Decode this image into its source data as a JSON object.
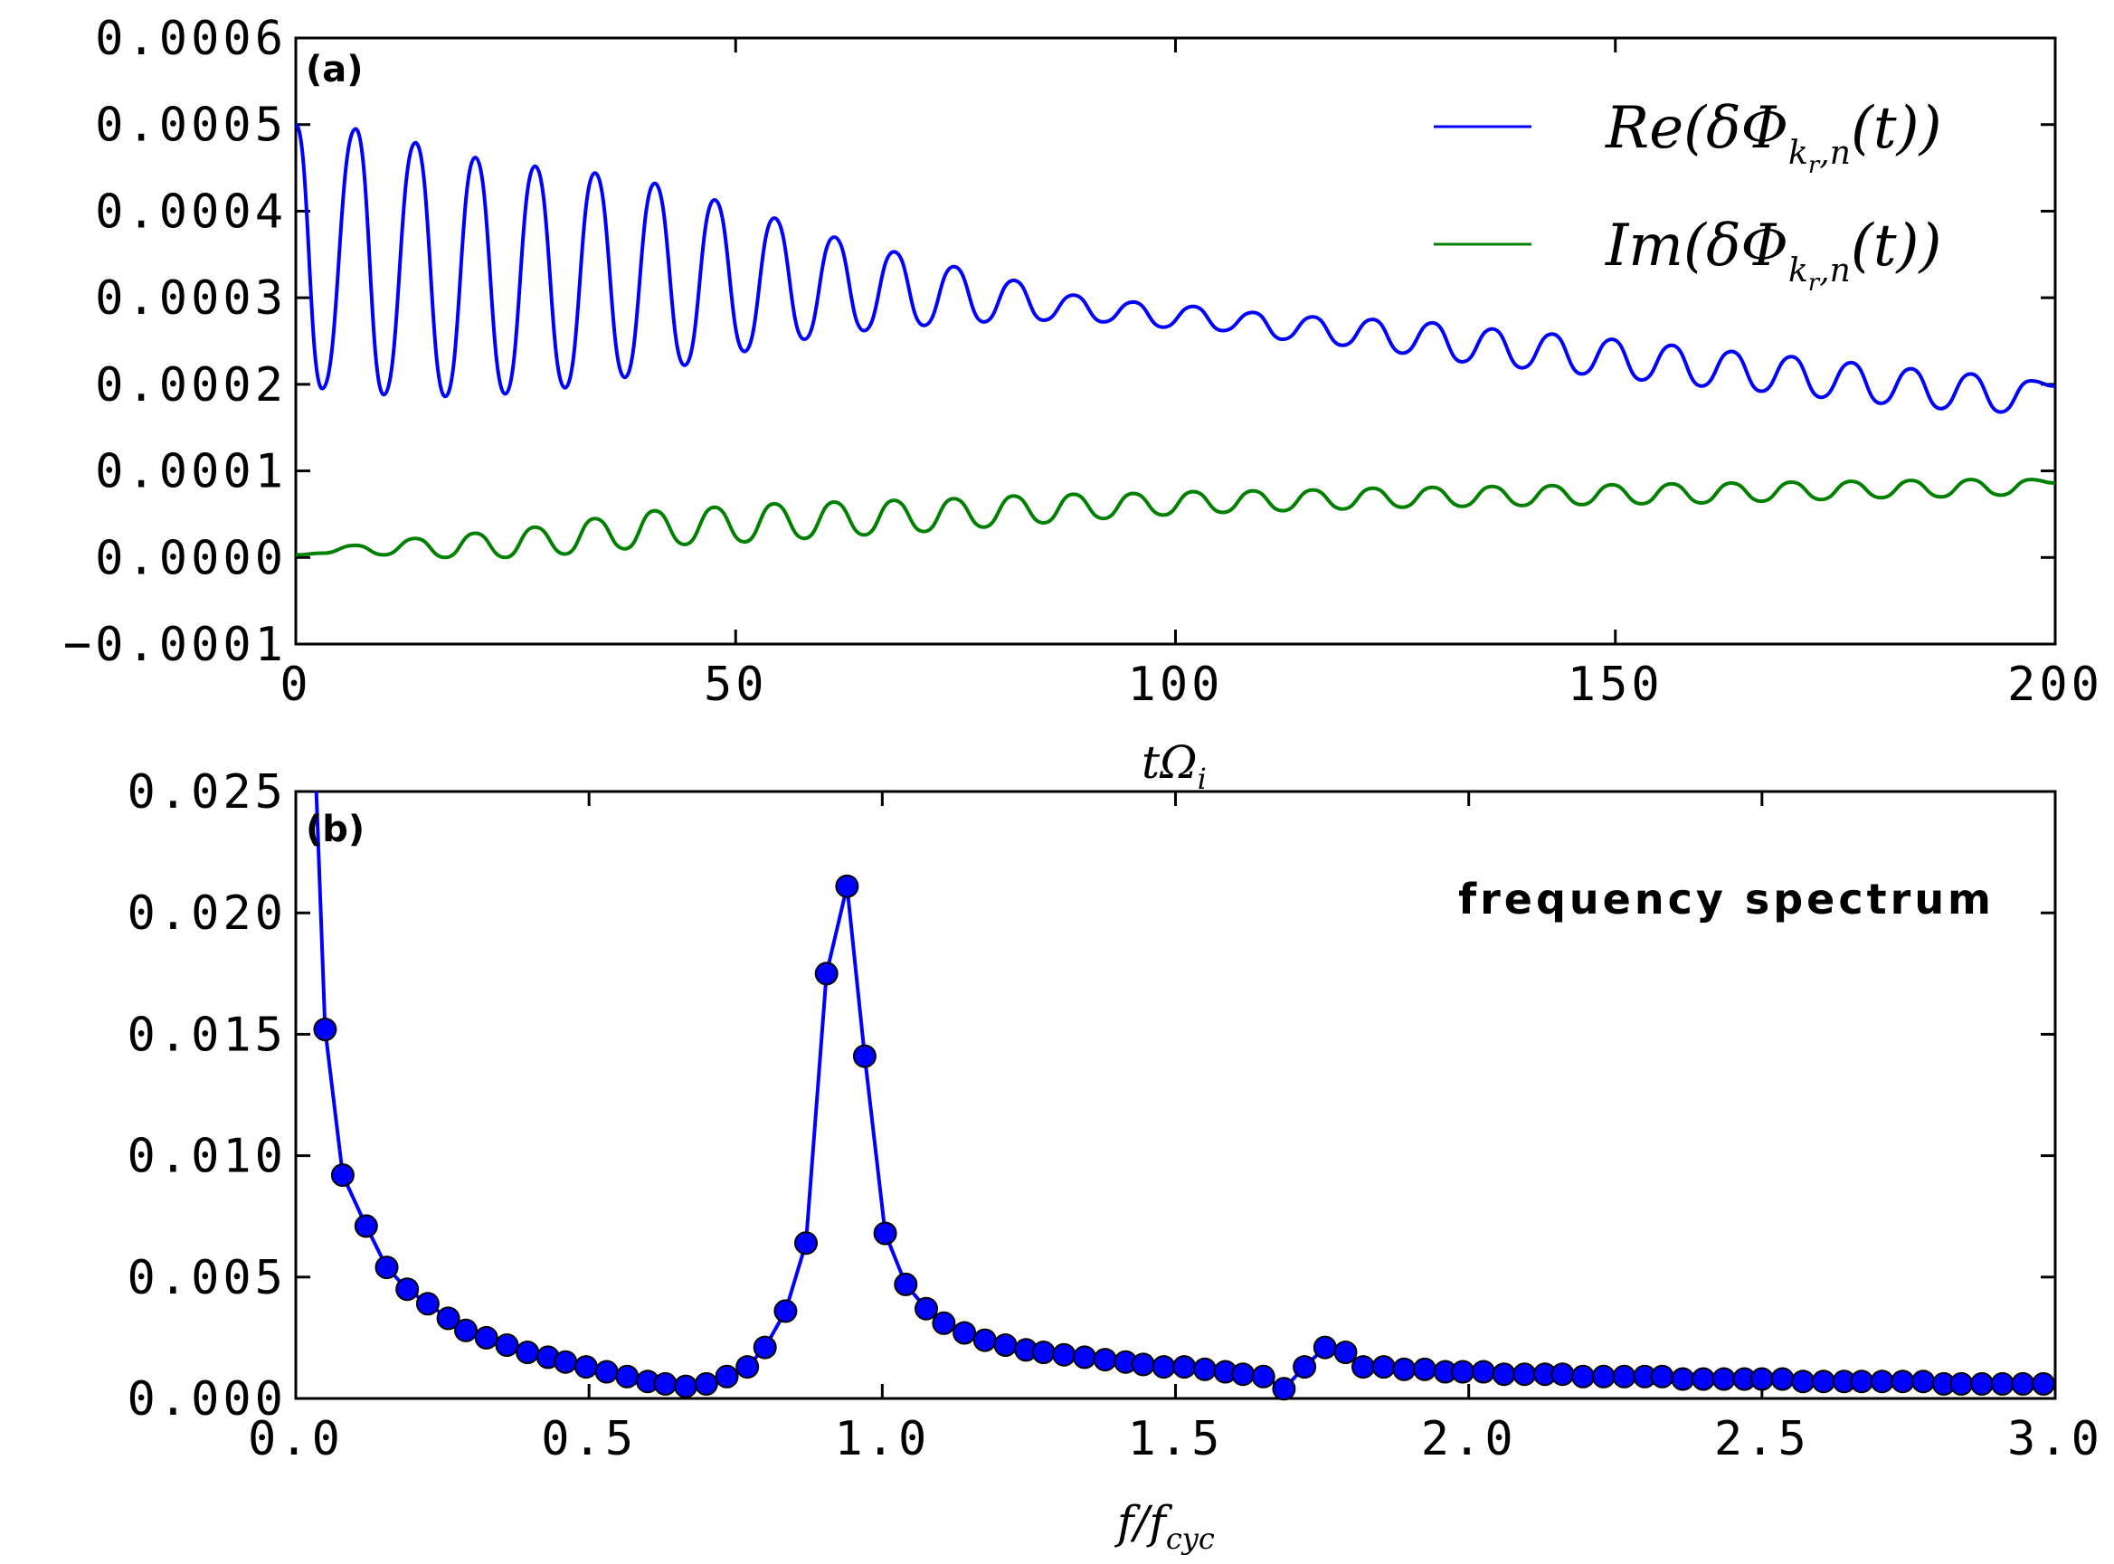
{
  "chart_data": [
    {
      "type": "line",
      "panel_label": "(a)",
      "xlabel": "tΩ",
      "xlabel_sub": "i",
      "xlim": [
        0,
        200
      ],
      "ylim": [
        -0.0001,
        0.0006
      ],
      "x_ticks": [
        0,
        50,
        100,
        150,
        200
      ],
      "x_tick_labels": [
        "0",
        "50",
        "100",
        "150",
        "200"
      ],
      "y_ticks": [
        -0.0001,
        0.0,
        0.0001,
        0.0002,
        0.0003,
        0.0004,
        0.0005,
        0.0006
      ],
      "y_tick_labels": [
        "−0.0001",
        "0.0000",
        "0.0001",
        "0.0002",
        "0.0003",
        "0.0004",
        "0.0005",
        "0.0006"
      ],
      "legend_position": "top-right",
      "series": [
        {
          "name": "Re(δΦ_{k_r,n}(t))",
          "legend_main": "Re(δΦ",
          "legend_sub": "k",
          "legend_subsub": "r",
          "legend_sub2": ",n",
          "legend_tail": "(t))",
          "color": "#0000ff",
          "x": [
            0,
            3,
            6.8,
            10,
            13.6,
            17,
            20.4,
            23.8,
            27.2,
            30.6,
            34,
            37.4,
            40.8,
            44.2,
            47.6,
            51,
            54.4,
            57.8,
            61.2,
            64.6,
            68,
            71.4,
            74.8,
            78.2,
            81.6,
            85,
            88.4,
            91.8,
            95.2,
            98.6,
            102,
            105.4,
            108.8,
            112.2,
            115.6,
            119,
            122.4,
            125.8,
            129.2,
            132.6,
            136,
            139.4,
            142.8,
            146.2,
            149.6,
            153,
            156.4,
            159.8,
            163.2,
            166.6,
            170,
            173.4,
            176.8,
            180.2,
            183.6,
            187,
            190.4,
            193.8,
            197.2,
            200
          ],
          "values": [
            0.0005,
            0.000195,
            0.000495,
            0.000188,
            0.000479,
            0.000186,
            0.000462,
            0.000189,
            0.000452,
            0.000196,
            0.000444,
            0.000208,
            0.000432,
            0.000222,
            0.000413,
            0.000238,
            0.000392,
            0.000252,
            0.00037,
            0.000262,
            0.000353,
            0.000268,
            0.000336,
            0.000272,
            0.00032,
            0.000274,
            0.000303,
            0.000272,
            0.000295,
            0.000266,
            0.00029,
            0.000262,
            0.000283,
            0.000252,
            0.000278,
            0.000245,
            0.000275,
            0.000236,
            0.000271,
            0.000226,
            0.000264,
            0.000219,
            0.000258,
            0.000212,
            0.000252,
            0.000205,
            0.000245,
            0.000198,
            0.000238,
            0.000192,
            0.000232,
            0.000185,
            0.000225,
            0.000178,
            0.000218,
            0.000172,
            0.000212,
            0.000168,
            0.000204,
            0.000198
          ]
        },
        {
          "name": "Im(δΦ_{k_r,n}(t))",
          "legend_main": "Im(δΦ",
          "legend_sub": "k",
          "legend_subsub": "r",
          "legend_sub2": ",n",
          "legend_tail": "(t))",
          "color": "#008000",
          "x": [
            0,
            3,
            6.8,
            10,
            13.6,
            17,
            20.4,
            23.8,
            27.2,
            30.6,
            34,
            37.4,
            40.8,
            44.2,
            47.6,
            51,
            54.4,
            57.8,
            61.2,
            64.6,
            68,
            71.4,
            74.8,
            78.2,
            81.6,
            85,
            88.4,
            91.8,
            95.2,
            98.6,
            102,
            105.4,
            108.8,
            112.2,
            115.6,
            119,
            122.4,
            125.8,
            129.2,
            132.6,
            136,
            139.4,
            142.8,
            146.2,
            149.6,
            153,
            156.4,
            159.8,
            163.2,
            166.6,
            170,
            173.4,
            176.8,
            180.2,
            183.6,
            187,
            190.4,
            193.8,
            197.2,
            200
          ],
          "values": [
            3e-06,
            5e-06,
            1.4e-05,
            3e-06,
            2.2e-05,
            0.0,
            2.8e-05,
            0.0,
            3.5e-05,
            4e-06,
            4.5e-05,
            1e-05,
            5.4e-05,
            1.5e-05,
            5.8e-05,
            1.8e-05,
            6.2e-05,
            2.2e-05,
            6.4e-05,
            2.6e-05,
            6.6e-05,
            3e-05,
            6.8e-05,
            3.5e-05,
            7.1e-05,
            4e-05,
            7.3e-05,
            4.5e-05,
            7.4e-05,
            4.9e-05,
            7.6e-05,
            5.2e-05,
            7.7e-05,
            5.4e-05,
            7.8e-05,
            5.6e-05,
            8e-05,
            5.8e-05,
            8.1e-05,
            5.9e-05,
            8.2e-05,
            6e-05,
            8.3e-05,
            6.1e-05,
            8.4e-05,
            6.2e-05,
            8.5e-05,
            6.3e-05,
            8.6e-05,
            6.5e-05,
            8.7e-05,
            6.7e-05,
            8.8e-05,
            6.9e-05,
            8.9e-05,
            7e-05,
            9e-05,
            7.2e-05,
            9e-05,
            8.6e-05
          ]
        }
      ]
    },
    {
      "type": "line",
      "panel_label": "(b)",
      "annotation": "frequency spectrum",
      "xlabel": "f/f",
      "xlabel_sub": "cyc",
      "xlim": [
        0.0,
        3.0
      ],
      "ylim": [
        0.0,
        0.025
      ],
      "x_ticks": [
        0.0,
        0.5,
        1.0,
        1.5,
        2.0,
        2.5,
        3.0
      ],
      "x_tick_labels": [
        "0.0",
        "0.5",
        "1.0",
        "1.5",
        "2.0",
        "2.5",
        "3.0"
      ],
      "y_ticks": [
        0.0,
        0.005,
        0.01,
        0.015,
        0.02,
        0.025
      ],
      "y_tick_labels": [
        "0.000",
        "0.005",
        "0.010",
        "0.015",
        "0.020",
        "0.025"
      ],
      "series": [
        {
          "name": "spectrum",
          "color": "#0000ff",
          "marker": "circle",
          "marker_color": "#0000ff",
          "x": [
            0.05,
            0.08,
            0.12,
            0.155,
            0.19,
            0.225,
            0.26,
            0.29,
            0.325,
            0.36,
            0.395,
            0.43,
            0.46,
            0.495,
            0.53,
            0.565,
            0.6,
            0.63,
            0.665,
            0.7,
            0.735,
            0.77,
            0.8,
            0.835,
            0.87,
            0.905,
            0.94,
            0.97,
            1.005,
            1.04,
            1.075,
            1.105,
            1.14,
            1.175,
            1.21,
            1.245,
            1.275,
            1.31,
            1.345,
            1.38,
            1.415,
            1.445,
            1.48,
            1.515,
            1.55,
            1.585,
            1.615,
            1.65,
            1.685,
            1.72,
            1.755,
            1.79,
            1.82,
            1.855,
            1.89,
            1.925,
            1.96,
            1.99,
            2.025,
            2.06,
            2.095,
            2.13,
            2.16,
            2.195,
            2.23,
            2.265,
            2.3,
            2.33,
            2.365,
            2.4,
            2.435,
            2.47,
            2.5,
            2.535,
            2.57,
            2.605,
            2.64,
            2.67,
            2.705,
            2.74,
            2.775,
            2.81,
            2.84,
            2.875,
            2.91,
            2.945,
            2.98
          ],
          "values": [
            0.0152,
            0.0092,
            0.0071,
            0.0054,
            0.0045,
            0.0039,
            0.0033,
            0.0028,
            0.0025,
            0.0022,
            0.0019,
            0.0017,
            0.0015,
            0.0013,
            0.0011,
            0.0009,
            0.0007,
            0.0006,
            0.0005,
            0.0006,
            0.0009,
            0.0013,
            0.0021,
            0.0036,
            0.0064,
            0.0175,
            0.0211,
            0.0141,
            0.0068,
            0.0047,
            0.0037,
            0.0031,
            0.0027,
            0.0024,
            0.0022,
            0.002,
            0.0019,
            0.0018,
            0.0017,
            0.0016,
            0.0015,
            0.0014,
            0.0013,
            0.0013,
            0.0012,
            0.0011,
            0.001,
            0.0009,
            0.0004,
            0.0013,
            0.0021,
            0.0019,
            0.0013,
            0.0013,
            0.0012,
            0.0012,
            0.0011,
            0.0011,
            0.0011,
            0.001,
            0.001,
            0.001,
            0.001,
            0.0009,
            0.0009,
            0.0009,
            0.0009,
            0.0009,
            0.0008,
            0.0008,
            0.0008,
            0.0008,
            0.0008,
            0.0008,
            0.0007,
            0.0007,
            0.0007,
            0.0007,
            0.0007,
            0.0007,
            0.0007,
            0.0006,
            0.0006,
            0.0006,
            0.0006,
            0.0006,
            0.0006
          ]
        }
      ]
    }
  ]
}
